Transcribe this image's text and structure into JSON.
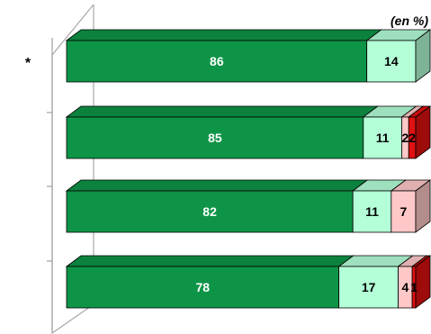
{
  "chart_data": {
    "type": "bar",
    "orientation": "horizontal",
    "stacked": true,
    "three_d": true,
    "unit_label": "(en %)",
    "row_marker": "*",
    "xlim": [
      0,
      100
    ],
    "legend": "none",
    "grid": false,
    "rows": [
      {
        "marker": "*",
        "segments": [
          {
            "value": 86,
            "label": "86",
            "color": "#0e9447"
          },
          {
            "value": 14,
            "label": "14",
            "color": "#b4ffd8"
          }
        ]
      },
      {
        "marker": "",
        "segments": [
          {
            "value": 85,
            "label": "85",
            "color": "#0e9447"
          },
          {
            "value": 11,
            "label": "11",
            "color": "#b4ffd8"
          },
          {
            "value": 2,
            "label": "2",
            "color": "#ffc8c8"
          },
          {
            "value": 2,
            "label": "2",
            "color": "#e01010"
          }
        ]
      },
      {
        "marker": "",
        "segments": [
          {
            "value": 82,
            "label": "82",
            "color": "#0e9447"
          },
          {
            "value": 11,
            "label": "11",
            "color": "#b4ffd8"
          },
          {
            "value": 7,
            "label": "7",
            "color": "#ffc8c8"
          }
        ]
      },
      {
        "marker": "",
        "segments": [
          {
            "value": 78,
            "label": "78",
            "color": "#0e9447"
          },
          {
            "value": 17,
            "label": "17",
            "color": "#b4ffd8"
          },
          {
            "value": 4,
            "label": "4",
            "color": "#ffc8c8"
          },
          {
            "value": 1,
            "label": "1",
            "color": "#e01010"
          }
        ]
      }
    ]
  }
}
